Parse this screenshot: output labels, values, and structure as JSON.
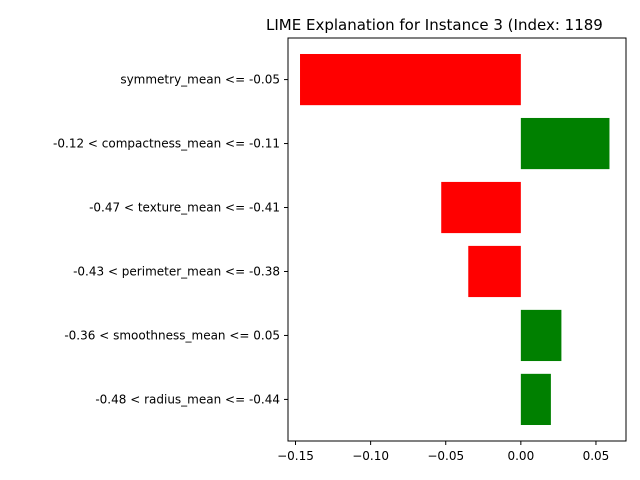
{
  "chart_data": {
    "type": "bar",
    "orientation": "horizontal",
    "title": "LIME Explanation for Instance 3 (Index: 1189",
    "xlabel": "",
    "ylabel": "",
    "xlim": [
      -0.155,
      0.07
    ],
    "xticks": [
      -0.15,
      -0.1,
      -0.05,
      0.0,
      0.05
    ],
    "xtick_labels": [
      "−0.15",
      "−0.10",
      "−0.05",
      "0.00",
      "0.05"
    ],
    "grid": false,
    "categories": [
      "symmetry_mean <= -0.05",
      "-0.12 < compactness_mean <= -0.11",
      "-0.47 < texture_mean <= -0.41",
      "-0.43 < perimeter_mean <= -0.38",
      "-0.36 < smoothness_mean <= 0.05",
      "-0.48 < radius_mean <= -0.44"
    ],
    "values": [
      -0.147,
      0.059,
      -0.053,
      -0.035,
      0.027,
      0.02
    ],
    "colors": {
      "positive": "#008000",
      "negative": "#ff0000"
    }
  }
}
